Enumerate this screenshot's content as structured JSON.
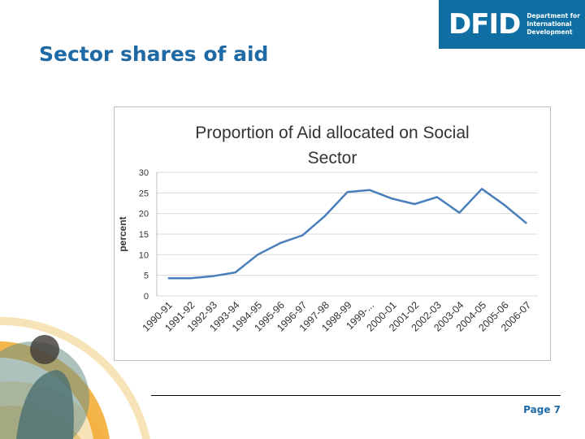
{
  "slide": {
    "title": "Sector shares of aid",
    "page_label": "Page 7"
  },
  "logo": {
    "mark": "DFID",
    "lines": [
      "Department for",
      "International",
      "Development"
    ]
  },
  "chart_data": {
    "type": "line",
    "title_lines": [
      "Proportion of Aid allocated on Social",
      "Sector"
    ],
    "xlabel": "",
    "ylabel": "percent",
    "ylim": [
      0,
      30
    ],
    "yticks": [
      0,
      5,
      10,
      15,
      20,
      25,
      30
    ],
    "grid": true,
    "legend": "none",
    "categories": [
      "1990-91",
      "1991-92",
      "1992-93",
      "1993-94",
      "1994-95",
      "1995-96",
      "1996-97",
      "1997-98",
      "1998-99",
      "1999-...",
      "2000-01",
      "2001-02",
      "2002-03",
      "2003-04",
      "2004-05",
      "2005-06",
      "2006-07"
    ],
    "series": [
      {
        "name": "",
        "color": "#4a7ebb",
        "values": [
          4.3,
          4.3,
          4.8,
          5.7,
          10.0,
          12.8,
          14.7,
          19.4,
          25.2,
          25.7,
          23.6,
          22.3,
          24.0,
          20.2,
          26.0,
          22.1,
          17.6
        ]
      }
    ]
  }
}
